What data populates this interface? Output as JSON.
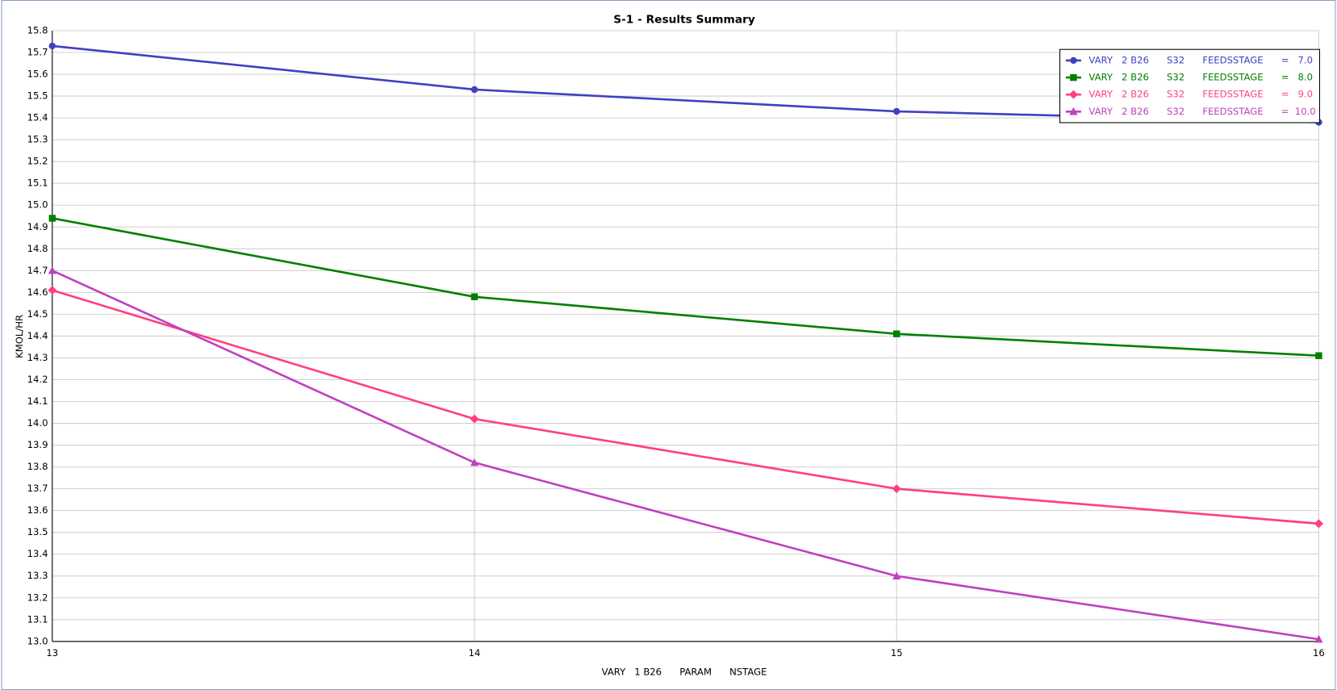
{
  "chart_data": {
    "type": "line",
    "title": "S-1 - Results Summary",
    "xlabel": "VARY   1 B26      PARAM      NSTAGE",
    "ylabel": "KMOL/HR",
    "x": [
      13,
      14,
      15,
      16
    ],
    "series": [
      {
        "name": "VARY   2 B26      S32      FEEDSSTAGE      =   7.0",
        "color": "#4040c0",
        "marker": "circle",
        "values": [
          15.73,
          15.53,
          15.43,
          15.38
        ]
      },
      {
        "name": "VARY   2 B26      S32      FEEDSSTAGE      =   8.0",
        "color": "#008000",
        "marker": "square",
        "values": [
          14.94,
          14.58,
          14.41,
          14.31
        ]
      },
      {
        "name": "VARY   2 B26      S32      FEEDSSTAGE      =   9.0",
        "color": "#ff4080",
        "marker": "diamond",
        "values": [
          14.61,
          14.02,
          13.7,
          13.54
        ]
      },
      {
        "name": "VARY   2 B26      S32      FEEDSSTAGE      =  10.0",
        "color": "#c040c0",
        "marker": "triangle",
        "values": [
          14.7,
          13.82,
          13.3,
          13.01
        ]
      }
    ],
    "xlim": [
      13,
      16
    ],
    "xticks": [
      13,
      14,
      15,
      16
    ],
    "ylim": [
      13.0,
      15.8
    ],
    "yticks": [
      {
        "value": 13.0,
        "label": "13.0"
      },
      13.1,
      13.2,
      13.3,
      13.4,
      13.5,
      13.6,
      13.7,
      13.8,
      13.9,
      {
        "value": 14.0,
        "label": "14.0"
      },
      14.1,
      14.2,
      14.3,
      14.4,
      14.5,
      14.6,
      14.7,
      14.8,
      14.9,
      {
        "value": 15.0,
        "label": "15.0"
      },
      15.1,
      15.2,
      15.3,
      15.4,
      15.5,
      15.6,
      15.7,
      15.8
    ],
    "grid": true,
    "legend": "upper right"
  }
}
